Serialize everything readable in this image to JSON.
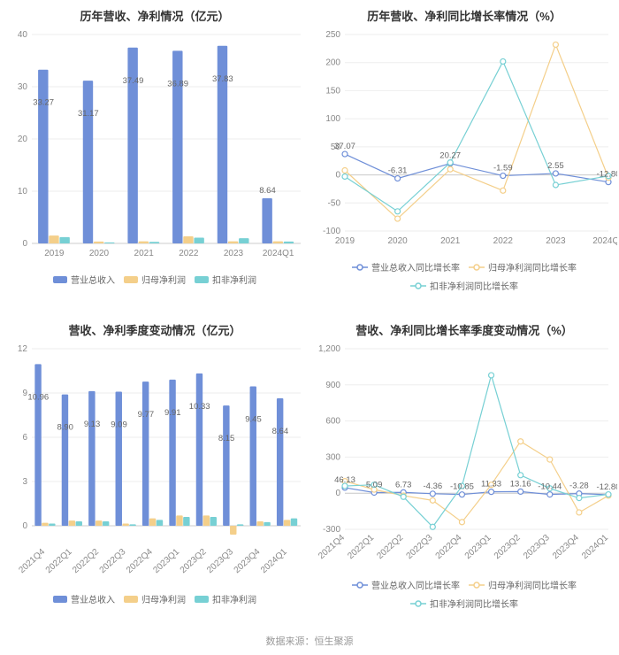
{
  "footer": "数据来源：恒生聚源",
  "colors": {
    "series1": "#6f8fd8",
    "series2": "#f4cf8a",
    "series3": "#77d0d4",
    "grid": "#eeeeee",
    "axis": "#cccccc",
    "text": "#888888",
    "valtext": "#666666",
    "bg": "#ffffff"
  },
  "panelA": {
    "title": "历年营收、净利情况（亿元）",
    "type": "bar",
    "categories": [
      "2019",
      "2020",
      "2021",
      "2022",
      "2023",
      "2024Q1"
    ],
    "series": [
      {
        "name": "营业总收入",
        "color": "#6f8fd8",
        "values": [
          33.27,
          31.17,
          37.49,
          36.89,
          37.83,
          8.64
        ]
      },
      {
        "name": "归母净利润",
        "color": "#f4cf8a",
        "values": [
          1.5,
          0.35,
          0.4,
          1.35,
          0.4,
          0.4
        ]
      },
      {
        "name": "扣非净利润",
        "color": "#77d0d4",
        "values": [
          1.2,
          0.2,
          0.3,
          1.1,
          1.0,
          0.35
        ]
      }
    ],
    "value_labels": [
      33.27,
      31.17,
      37.49,
      36.89,
      37.83,
      8.64
    ],
    "ylim": [
      0,
      40
    ],
    "yticks": [
      0,
      10,
      20,
      30,
      40
    ],
    "title_fontsize": 13,
    "label_fontsize": 10,
    "bar_group_width": 0.72
  },
  "panelB": {
    "title": "历年营收、净利同比增长率情况（%）",
    "type": "line",
    "categories": [
      "2019",
      "2020",
      "2021",
      "2022",
      "2023",
      "2024Q1"
    ],
    "series": [
      {
        "name": "营业总收入同比增长率",
        "color": "#6f8fd8",
        "values": [
          37.07,
          -6.31,
          20.27,
          -1.59,
          2.55,
          -12.8
        ]
      },
      {
        "name": "归母净利润同比增长率",
        "color": "#f4cf8a",
        "values": [
          8,
          -78,
          10,
          -28,
          232,
          -5
        ]
      },
      {
        "name": "扣非净利润同比增长率",
        "color": "#77d0d4",
        "values": [
          -3,
          -65,
          22,
          202,
          -18,
          -2
        ]
      }
    ],
    "value_labels": [
      37.07,
      -6.31,
      20.27,
      -1.59,
      2.55,
      -12.8
    ],
    "ylim": [
      -100,
      250
    ],
    "yticks": [
      -100,
      -50,
      0,
      50,
      100,
      150,
      200,
      250
    ],
    "title_fontsize": 13,
    "label_fontsize": 10,
    "marker": "circle",
    "marker_size": 3,
    "line_width": 1.2
  },
  "panelC": {
    "title": "营收、净利季度变动情况（亿元）",
    "type": "bar",
    "categories": [
      "2021Q4",
      "2022Q1",
      "2022Q2",
      "2022Q3",
      "2022Q4",
      "2023Q1",
      "2023Q2",
      "2023Q3",
      "2023Q4",
      "2024Q1"
    ],
    "series": [
      {
        "name": "营业总收入",
        "color": "#6f8fd8",
        "values": [
          10.96,
          8.9,
          9.13,
          9.09,
          9.77,
          9.91,
          10.33,
          8.15,
          9.45,
          8.64
        ]
      },
      {
        "name": "归母净利润",
        "color": "#f4cf8a",
        "values": [
          0.2,
          0.35,
          0.35,
          0.15,
          0.5,
          0.7,
          0.7,
          -0.6,
          0.3,
          0.4
        ]
      },
      {
        "name": "扣非净利润",
        "color": "#77d0d4",
        "values": [
          0.15,
          0.3,
          0.3,
          0.1,
          0.4,
          0.6,
          0.6,
          0.1,
          0.25,
          0.5
        ]
      }
    ],
    "value_labels": [
      10.96,
      8.9,
      9.13,
      9.09,
      9.77,
      9.91,
      10.33,
      8.15,
      9.45,
      8.64
    ],
    "ylim": [
      -1.2,
      12
    ],
    "yticks": [
      0,
      3,
      6,
      9,
      12
    ],
    "title_fontsize": 13,
    "label_fontsize": 10,
    "bar_group_width": 0.78,
    "rotate_xlabels": -42
  },
  "panelD": {
    "title": "营收、净利同比增长率季度变动情况（%）",
    "type": "line",
    "categories": [
      "2021Q4",
      "2022Q1",
      "2022Q2",
      "2022Q3",
      "2022Q4",
      "2023Q1",
      "2023Q2",
      "2023Q3",
      "2023Q4",
      "2024Q1"
    ],
    "series": [
      {
        "name": "营业总收入同比增长率",
        "color": "#6f8fd8",
        "values": [
          46.13,
          5.09,
          6.73,
          -4.36,
          -10.85,
          11.33,
          13.16,
          -10.44,
          -3.28,
          -12.8
        ]
      },
      {
        "name": "归母净利润同比增长率",
        "color": "#f4cf8a",
        "values": [
          100,
          30,
          -20,
          -60,
          -240,
          70,
          430,
          280,
          -160,
          -20
        ]
      },
      {
        "name": "扣非净利润同比增长率",
        "color": "#77d0d4",
        "values": [
          60,
          70,
          -30,
          -280,
          60,
          980,
          150,
          40,
          -40,
          -10
        ]
      }
    ],
    "value_labels": [
      46.13,
      5.09,
      6.73,
      -4.36,
      -10.85,
      11.33,
      13.16,
      -10.44,
      -3.28,
      -12.8
    ],
    "ylim": [
      -300,
      1200
    ],
    "yticks": [
      -300,
      0,
      300,
      600,
      900,
      1200
    ],
    "title_fontsize": 13,
    "label_fontsize": 10,
    "marker": "circle",
    "marker_size": 3,
    "line_width": 1.2,
    "rotate_xlabels": -42
  }
}
